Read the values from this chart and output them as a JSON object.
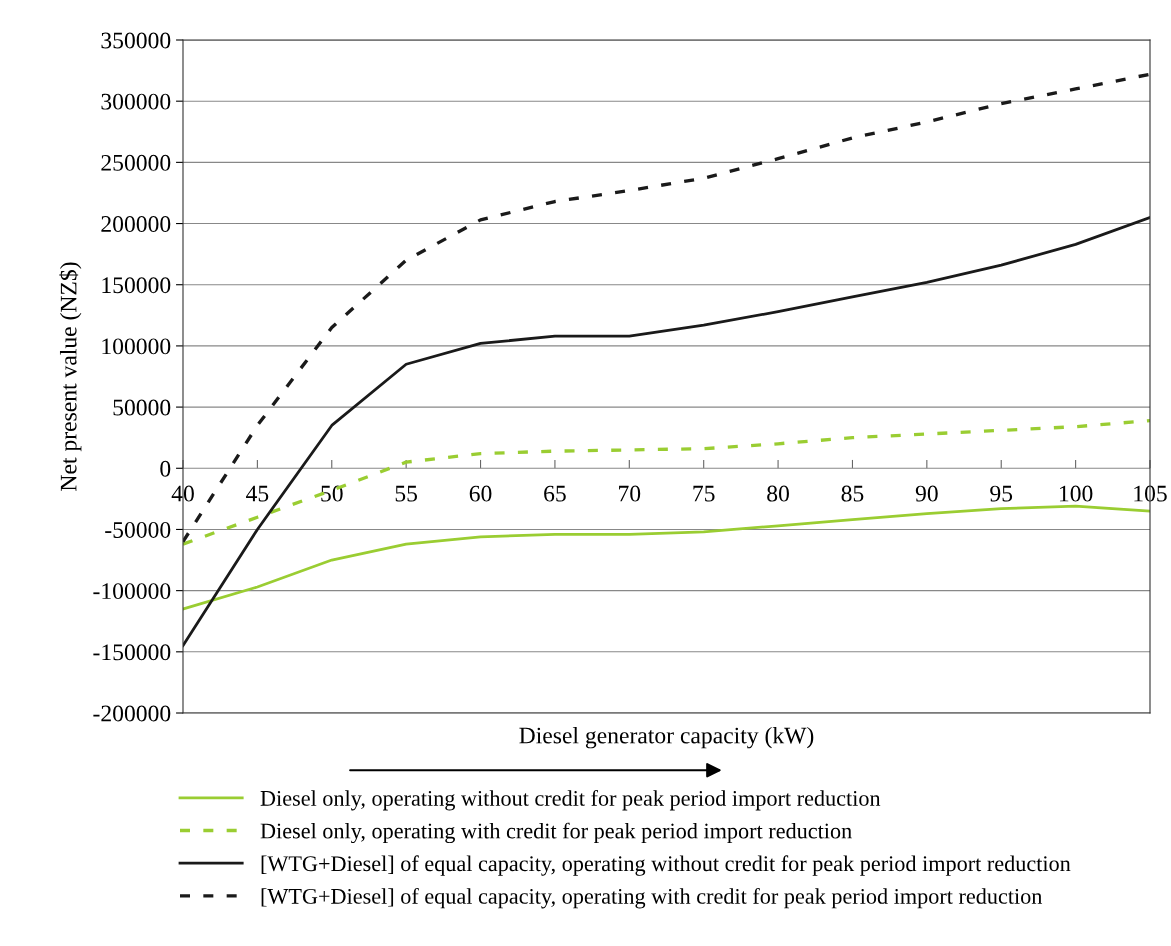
{
  "chart_data": {
    "type": "line",
    "xlabel": "Diesel generator capacity (kW)",
    "ylabel": "Net present value (NZ$)",
    "x": [
      40,
      45,
      50,
      55,
      60,
      65,
      70,
      75,
      80,
      85,
      90,
      95,
      100,
      105
    ],
    "series": [
      {
        "name": "Diesel only, operating without credit for peak period import reduction",
        "color": "#9acd32",
        "line_style": "solid",
        "values": [
          -115000,
          -97000,
          -75000,
          -62000,
          -56000,
          -54000,
          -54000,
          -52000,
          -47000,
          -42000,
          -37000,
          -33000,
          -31000,
          -35000
        ]
      },
      {
        "name": "Diesel only, operating with credit for peak period import reduction",
        "color": "#9acd32",
        "line_style": "dashed",
        "values": [
          -62000,
          -40000,
          -18000,
          5000,
          12000,
          14000,
          15000,
          16000,
          20000,
          25000,
          28000,
          31000,
          34000,
          39000
        ]
      },
      {
        "name": "[WTG+Diesel] of equal capacity, operating without credit for peak period import reduction",
        "color": "#1a1a1a",
        "line_style": "solid",
        "values": [
          -145000,
          -50000,
          35000,
          85000,
          102000,
          108000,
          108000,
          117000,
          128000,
          140000,
          152000,
          166000,
          183000,
          205000
        ]
      },
      {
        "name": "[WTG+Diesel] of equal capacity, operating with credit for peak period import reduction",
        "color": "#1a1a1a",
        "line_style": "dashed",
        "values": [
          -60000,
          35000,
          115000,
          170000,
          203000,
          218000,
          227000,
          237000,
          253000,
          270000,
          283000,
          298000,
          310000,
          322000
        ]
      }
    ],
    "xlim": [
      40,
      105
    ],
    "xticks": [
      40,
      45,
      50,
      55,
      60,
      65,
      70,
      75,
      80,
      85,
      90,
      95,
      100,
      105
    ],
    "ylim": [
      -200000,
      350000
    ],
    "yticks": [
      -200000,
      -150000,
      -100000,
      -50000,
      0,
      50000,
      100000,
      150000,
      200000,
      250000,
      300000,
      350000
    ],
    "grid": "y",
    "legend": "bottom",
    "marker": "none"
  }
}
